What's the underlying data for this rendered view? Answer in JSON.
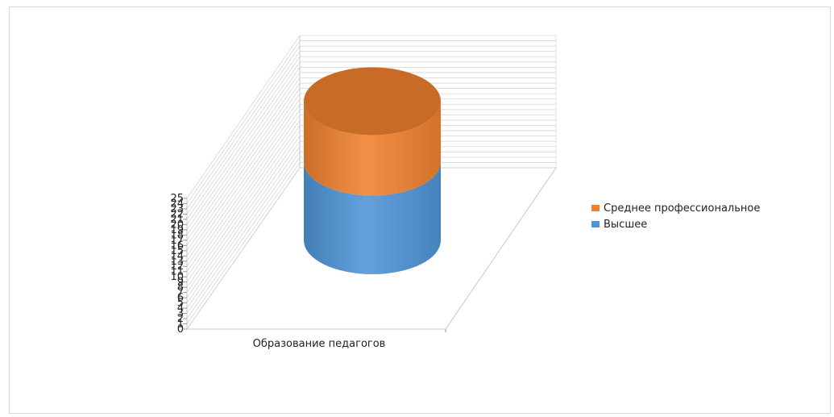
{
  "chart_data": {
    "type": "bar",
    "stacked": true,
    "three_d": true,
    "bar_shape": "cylinder",
    "categories": [
      "Образование педагогов"
    ],
    "series": [
      {
        "name": "Высшее",
        "values": [
          13
        ],
        "color": "#4F94D7"
      },
      {
        "name": "Среднее профессиональное",
        "values": [
          10
        ],
        "color": "#F0812F"
      }
    ],
    "ylim": [
      0,
      25
    ],
    "yticks": [
      0,
      1,
      2,
      3,
      4,
      5,
      6,
      7,
      8,
      9,
      10,
      11,
      12,
      13,
      14,
      15,
      16,
      17,
      18,
      19,
      20,
      21,
      22,
      23,
      24,
      25
    ],
    "grid": true,
    "legend_position": "right",
    "legend_order": [
      "Среднее профессиональное",
      "Высшее"
    ]
  }
}
